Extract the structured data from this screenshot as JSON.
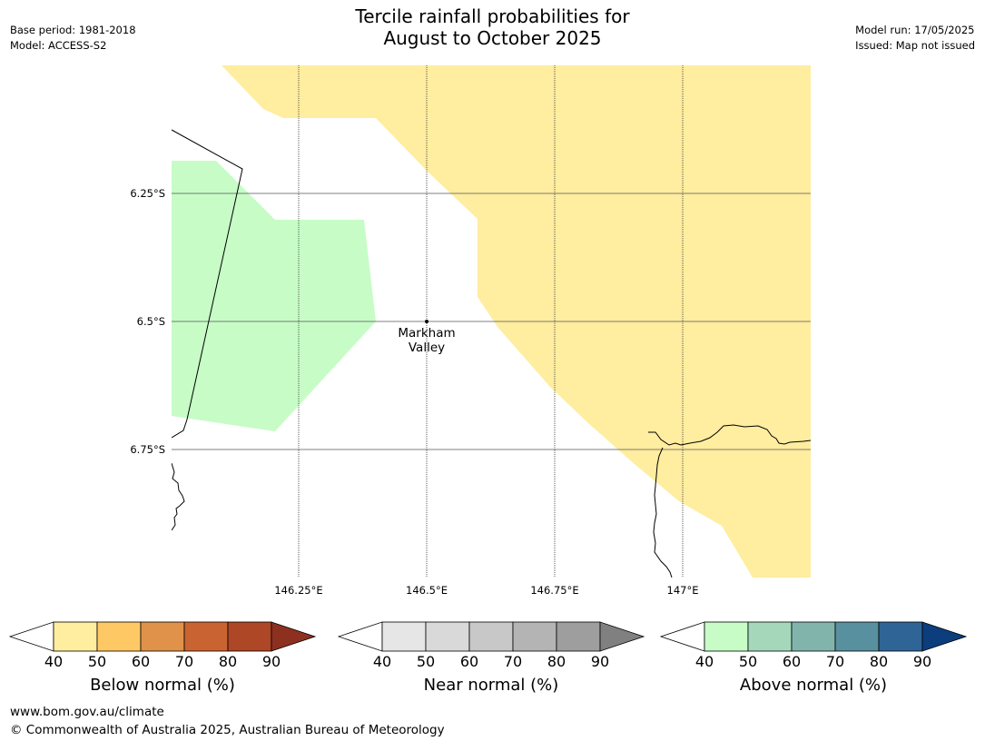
{
  "header": {
    "base_period": "Base period: 1981-2018",
    "model": "Model: ACCESS-S2",
    "model_run": "Model run: 17/05/2025",
    "issued": "Issued: Map not issued"
  },
  "title": {
    "line1": "Tercile rainfall probabilities for",
    "line2": "August to October 2025"
  },
  "map": {
    "lat_labels": [
      "6.25°S",
      "6.5°S",
      "6.75°S"
    ],
    "lon_labels": [
      "146.25°E",
      "146.5°E",
      "146.75°E",
      "147°E"
    ],
    "place": {
      "line1": "Markham",
      "line2": "Valley"
    },
    "fill_colors": {
      "below_40_50": "#ffeda0",
      "above_40_50": "#c7fcc7"
    }
  },
  "colorbars": [
    {
      "title": "Below normal (%)",
      "ticks": [
        "40",
        "50",
        "60",
        "70",
        "80",
        "90"
      ],
      "colors": [
        "#ffeda0",
        "#fec965",
        "#e0914a",
        "#ca6332",
        "#ad4726"
      ],
      "extend_color": "#8d3020"
    },
    {
      "title": "Near normal (%)",
      "ticks": [
        "40",
        "50",
        "60",
        "70",
        "80",
        "90"
      ],
      "colors": [
        "#e6e6e6",
        "#d9d9d9",
        "#c8c8c8",
        "#b4b4b4",
        "#9e9e9e"
      ],
      "extend_color": "#808080"
    },
    {
      "title": "Above normal (%)",
      "ticks": [
        "40",
        "50",
        "60",
        "70",
        "80",
        "90"
      ],
      "colors": [
        "#c7fcc7",
        "#a5d8bb",
        "#81b5ac",
        "#58909f",
        "#2f6596"
      ],
      "extend_color": "#0c3d7d"
    }
  ],
  "footer": {
    "url": "www.bom.gov.au/climate",
    "copyright": "© Commonwealth of Australia 2025, Australian Bureau of Meteorology"
  }
}
